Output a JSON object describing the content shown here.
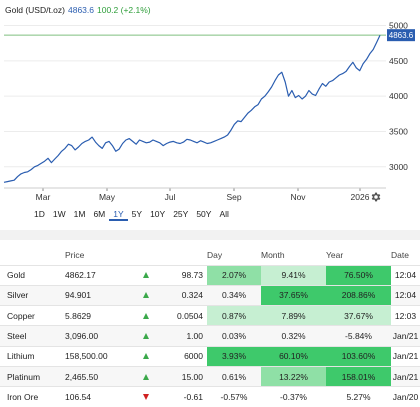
{
  "header": {
    "title": "Gold (USD/t.oz)",
    "price": "4863.6",
    "change": "100.2 (+2.1%)",
    "price_color": "#2a5db0",
    "change_color": "#2e9e3a"
  },
  "chart_data": {
    "type": "line",
    "x_tick_labels": [
      "Mar",
      "May",
      "Jul",
      "Sep",
      "Nov",
      "2026"
    ],
    "y_tick_labels": [
      "3000",
      "3500",
      "4000",
      "4500",
      "5000"
    ],
    "ylim": [
      2700,
      5050
    ],
    "last_value_label": "4863.6",
    "reference_level": 4863.6,
    "line_color": "#2a5db0",
    "series": [
      {
        "values": [
          2780,
          2790,
          2800,
          2810,
          2860,
          2900,
          2920,
          2930,
          2960,
          3000,
          3020,
          3050,
          3080,
          3120,
          3060,
          3110,
          3160,
          3220,
          3260,
          3320,
          3300,
          3240,
          3280,
          3330,
          3360,
          3380,
          3420,
          3350,
          3300,
          3260,
          3340,
          3360,
          3300,
          3220,
          3250,
          3330,
          3380,
          3400,
          3360,
          3320,
          3380,
          3360,
          3340,
          3350,
          3380,
          3360,
          3340,
          3300,
          3330,
          3350,
          3360,
          3340,
          3330,
          3350,
          3390,
          3380,
          3360,
          3340,
          3370,
          3350,
          3330,
          3340,
          3360,
          3380,
          3400,
          3420,
          3450,
          3520,
          3600,
          3650,
          3640,
          3700,
          3760,
          3800,
          3850,
          3880,
          3960,
          4000,
          4060,
          4130,
          4220,
          4300,
          4340,
          4200,
          4000,
          4080,
          3980,
          4010,
          3960,
          4000,
          4080,
          4030,
          4010,
          4100,
          4180,
          4140,
          4200,
          4220,
          4260,
          4300,
          4320,
          4350,
          4420,
          4480,
          4400,
          4360,
          4460,
          4520,
          4600,
          4660,
          4760,
          4863.6
        ]
      }
    ]
  },
  "range_buttons": [
    "1D",
    "1W",
    "1M",
    "6M",
    "1Y",
    "5Y",
    "10Y",
    "25Y",
    "50Y",
    "All"
  ],
  "active_range": "1Y",
  "colors": {
    "strong_green": "#3ec96b",
    "mid_green": "#8fe0a6",
    "light_green": "#c6efd2",
    "light_red": "#f7c6c6"
  },
  "table": {
    "headers": {
      "name": "",
      "price": "Price",
      "day": "Day",
      "month": "Month",
      "year": "Year",
      "date": "Date"
    },
    "rows": [
      {
        "name": "Gold",
        "price": "4862.17",
        "dir": "up",
        "change": "98.73",
        "day": "2.07%",
        "month": "9.41%",
        "year": "76.50%",
        "date": "12:04",
        "day_bg": "mid",
        "month_bg": "light",
        "year_bg": "strong"
      },
      {
        "name": "Silver",
        "price": "94.901",
        "dir": "up",
        "change": "0.324",
        "day": "0.34%",
        "month": "37.65%",
        "year": "208.86%",
        "date": "12:04",
        "day_bg": "none",
        "month_bg": "strong",
        "year_bg": "strong"
      },
      {
        "name": "Copper",
        "price": "5.8629",
        "dir": "up",
        "change": "0.0504",
        "day": "0.87%",
        "month": "7.89%",
        "year": "37.67%",
        "date": "12:03",
        "day_bg": "light",
        "month_bg": "light",
        "year_bg": "light"
      },
      {
        "name": "Steel",
        "price": "3,096.00",
        "dir": "up",
        "change": "1.00",
        "day": "0.03%",
        "month": "0.32%",
        "year": "-5.84%",
        "date": "Jan/21",
        "day_bg": "none",
        "month_bg": "none",
        "year_bg": "none"
      },
      {
        "name": "Lithium",
        "price": "158,500.00",
        "dir": "up",
        "change": "6000",
        "day": "3.93%",
        "month": "60.10%",
        "year": "103.60%",
        "date": "Jan/21",
        "day_bg": "strong",
        "month_bg": "strong",
        "year_bg": "strong"
      },
      {
        "name": "Platinum",
        "price": "2,465.50",
        "dir": "up",
        "change": "15.00",
        "day": "0.61%",
        "month": "13.22%",
        "year": "158.01%",
        "date": "Jan/21",
        "day_bg": "none",
        "month_bg": "mid",
        "year_bg": "strong"
      },
      {
        "name": "Iron Ore",
        "price": "106.54",
        "dir": "down",
        "change": "-0.61",
        "day": "-0.57%",
        "month": "-0.37%",
        "year": "5.27%",
        "date": "Jan/20",
        "day_bg": "none",
        "month_bg": "none",
        "year_bg": "none"
      }
    ]
  }
}
